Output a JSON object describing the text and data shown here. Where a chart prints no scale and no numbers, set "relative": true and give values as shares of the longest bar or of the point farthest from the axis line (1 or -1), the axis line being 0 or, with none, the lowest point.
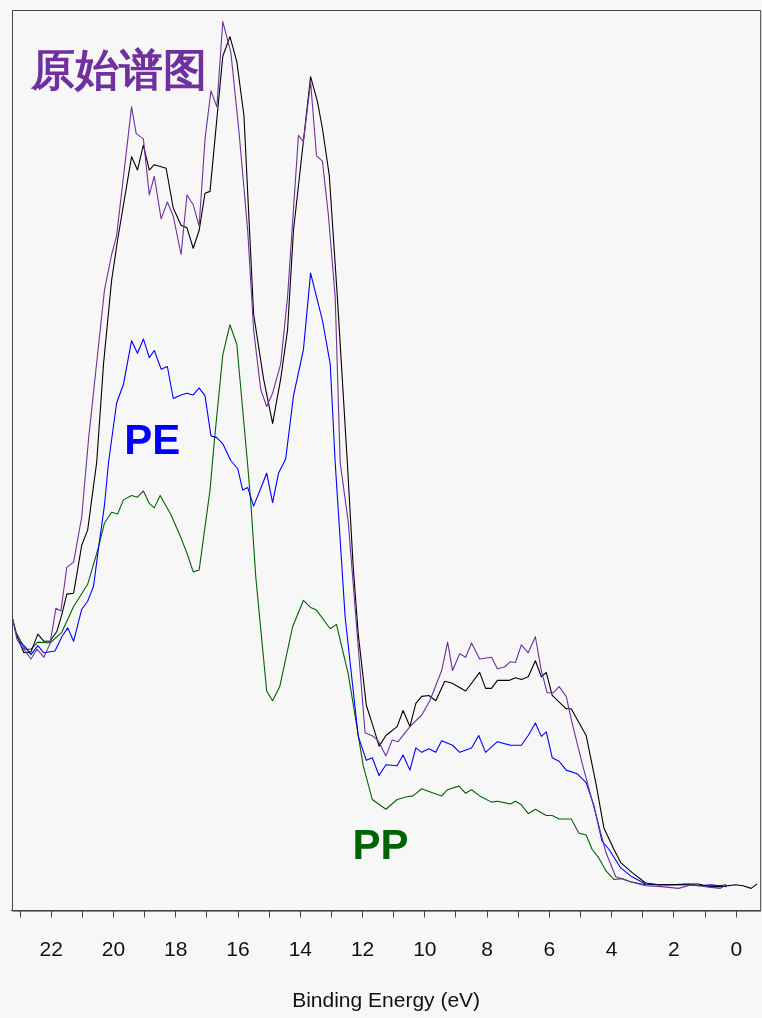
{
  "chart_data": {
    "type": "line",
    "xlabel": "Binding Energy (eV)",
    "relative": true,
    "legend": false,
    "grid": false,
    "marker": "none",
    "line_style": "solid",
    "xlim": [
      23.26,
      -0.77
    ],
    "xticks": [
      {
        "value": 23,
        "label": null
      },
      22,
      {
        "value": 21,
        "label": null
      },
      20,
      {
        "value": 19,
        "label": null
      },
      18,
      {
        "value": 17,
        "label": null
      },
      16,
      {
        "value": 15,
        "label": null
      },
      14,
      {
        "value": 13,
        "label": null
      },
      12,
      {
        "value": 11,
        "label": null
      },
      10,
      {
        "value": 9,
        "label": null
      },
      8,
      {
        "value": 7,
        "label": null
      },
      6,
      {
        "value": 5,
        "label": null
      },
      4,
      {
        "value": 3,
        "label": null
      },
      2,
      {
        "value": 1,
        "label": null
      },
      0
    ],
    "series": [
      {
        "name": "原始谱图",
        "color": "#7030a0",
        "x": [
          23.26,
          23.1,
          22.88,
          22.65,
          22.46,
          22.24,
          22.04,
          21.85,
          21.69,
          21.5,
          21.28,
          21.02,
          20.8,
          20.29,
          20.06,
          19.9,
          19.42,
          19.27,
          19.04,
          18.85,
          18.69,
          18.47,
          18.27,
          18.08,
          17.83,
          17.64,
          17.44,
          17.25,
          17.06,
          16.87,
          16.68,
          16.49,
          16.23,
          15.97,
          15.69,
          15.5,
          15.27,
          15.08,
          14.89,
          14.63,
          14.41,
          14.06,
          13.9,
          13.67,
          13.48,
          13.29,
          13.1,
          12.88,
          12.72,
          12.46,
          11.92,
          11.66,
          11.5,
          11.25,
          11.05,
          10.86,
          10.48,
          10.1,
          9.84,
          9.46,
          9.27,
          9.11,
          8.88,
          8.69,
          8.5,
          8.24,
          7.86,
          7.67,
          7.44,
          7.25,
          7.09,
          6.9,
          6.68,
          6.45,
          6.26,
          6.07,
          5.88,
          5.69,
          5.46,
          5.27,
          4.95,
          4.5,
          4.19,
          3.87,
          3.45,
          2.91,
          2.4,
          1.85,
          1.44,
          0.99,
          0.51,
          0.32
        ],
        "values": [
          0.331,
          0.305,
          0.294,
          0.283,
          0.294,
          0.285,
          0.3,
          0.34,
          0.337,
          0.386,
          0.392,
          0.443,
          0.531,
          0.698,
          0.738,
          0.759,
          0.904,
          0.874,
          0.868,
          0.805,
          0.826,
          0.778,
          0.797,
          0.781,
          0.738,
          0.805,
          0.794,
          0.77,
          0.868,
          0.922,
          0.904,
          1,
          0.965,
          0.876,
          0.765,
          0.653,
          0.586,
          0.567,
          0.582,
          0.615,
          0.69,
          0.872,
          0.865,
          0.932,
          0.849,
          0.843,
          0.783,
          0.69,
          0.504,
          0.437,
          0.2,
          0.196,
          0.191,
          0.174,
          0.192,
          0.19,
          0.207,
          0.22,
          0.236,
          0.27,
          0.302,
          0.27,
          0.289,
          0.285,
          0.301,
          0.283,
          0.285,
          0.272,
          0.274,
          0.28,
          0.279,
          0.299,
          0.29,
          0.308,
          0.27,
          0.245,
          0.245,
          0.252,
          0.241,
          0.211,
          0.166,
          0.107,
          0.066,
          0.038,
          0.033,
          0.028,
          0.027,
          0.025,
          0.029,
          0.027,
          0.025,
          0.029
        ]
      },
      {
        "color": "#000000",
        "x": [
          23.26,
          23.1,
          22.88,
          22.65,
          22.43,
          22.24,
          22.04,
          21.82,
          21.66,
          21.5,
          21.28,
          21.02,
          20.83,
          20.64,
          20.54,
          20.32,
          20.06,
          19.87,
          19.42,
          19.23,
          19.04,
          18.85,
          18.69,
          18.31,
          18.08,
          17.83,
          17.64,
          17.44,
          17.25,
          17.06,
          16.9,
          16.49,
          16.26,
          16.04,
          15.81,
          15.5,
          15.18,
          14.89,
          14.63,
          14.41,
          14.22,
          13.67,
          13.45,
          13.29,
          13.07,
          12.81,
          12.49,
          12.3,
          12.14,
          11.88,
          11.66,
          11.47,
          11.25,
          10.89,
          10.7,
          10.48,
          10.29,
          10.1,
          9.87,
          9.65,
          9.36,
          9.14,
          8.69,
          8.24,
          8.05,
          7.86,
          7.67,
          7.28,
          7.09,
          6.9,
          6.68,
          6.45,
          6.26,
          6.1,
          5.91,
          5.46,
          5.3,
          4.82,
          4.5,
          4.25,
          3.93,
          3.71,
          3.35,
          2.91,
          2.49,
          2.08,
          1.63,
          1.21,
          0.89,
          0.48,
          0.03,
          -0.22,
          -0.48,
          -0.67
        ],
        "values": [
          0.331,
          0.309,
          0.29,
          0.291,
          0.311,
          0.303,
          0.303,
          0.314,
          0.333,
          0.356,
          0.357,
          0.411,
          0.428,
          0.478,
          0.504,
          0.615,
          0.709,
          0.754,
          0.848,
          0.833,
          0.861,
          0.833,
          0.839,
          0.835,
          0.79,
          0.771,
          0.768,
          0.745,
          0.765,
          0.807,
          0.809,
          0.961,
          0.983,
          0.955,
          0.894,
          0.671,
          0.598,
          0.548,
          0.598,
          0.653,
          0.765,
          0.938,
          0.91,
          0.88,
          0.827,
          0.69,
          0.504,
          0.386,
          0.311,
          0.231,
          0.207,
          0.185,
          0.197,
          0.207,
          0.225,
          0.207,
          0.233,
          0.241,
          0.242,
          0.236,
          0.258,
          0.256,
          0.247,
          0.268,
          0.25,
          0.25,
          0.259,
          0.259,
          0.262,
          0.26,
          0.263,
          0.281,
          0.263,
          0.268,
          0.242,
          0.227,
          0.227,
          0.197,
          0.142,
          0.093,
          0.069,
          0.054,
          0.043,
          0.031,
          0.029,
          0.029,
          0.03,
          0.03,
          0.027,
          0.027,
          0.029,
          0.028,
          0.025,
          0.03
        ]
      },
      {
        "name": "PE",
        "color": "#0000ff",
        "x": [
          23.04,
          22.84,
          22.65,
          22.43,
          22.24,
          21.88,
          21.66,
          21.47,
          21.28,
          21.02,
          20.83,
          20.64,
          20.48,
          20.29,
          20.16,
          19.9,
          19.68,
          19.42,
          19.23,
          19.04,
          18.85,
          18.69,
          18.47,
          18.27,
          18.08,
          17.83,
          17.64,
          17.44,
          17.25,
          17.06,
          16.87,
          16.68,
          16.49,
          16.23,
          16.01,
          15.85,
          15.69,
          15.5,
          15.27,
          15.08,
          14.89,
          14.7,
          14.47,
          14.22,
          13.9,
          13.67,
          13.29,
          13.04,
          12.88,
          12.56,
          12.14,
          11.88,
          11.69,
          11.47,
          11.25,
          10.89,
          10.7,
          10.48,
          10.29,
          10.1,
          9.87,
          9.65,
          9.46,
          9.11,
          8.88,
          8.5,
          8.27,
          8.05,
          7.67,
          7.25,
          6.9,
          6.68,
          6.45,
          6.26,
          6.1,
          5.91,
          5.69,
          5.46,
          5.11,
          4.82,
          4.57,
          4.31,
          4.09,
          3.71,
          3.35,
          2.91,
          2.49,
          2.08,
          1.63,
          1.21,
          0.8,
          0.32
        ],
        "values": [
          0.303,
          0.297,
          0.288,
          0.298,
          0.29,
          0.292,
          0.308,
          0.318,
          0.303,
          0.339,
          0.348,
          0.365,
          0.408,
          0.456,
          0.504,
          0.571,
          0.592,
          0.641,
          0.627,
          0.643,
          0.622,
          0.63,
          0.609,
          0.612,
          0.576,
          0.58,
          0.582,
          0.58,
          0.588,
          0.579,
          0.534,
          0.532,
          0.525,
          0.506,
          0.497,
          0.473,
          0.476,
          0.455,
          0.475,
          0.492,
          0.459,
          0.492,
          0.508,
          0.579,
          0.631,
          0.717,
          0.664,
          0.615,
          0.504,
          0.33,
          0.196,
          0.169,
          0.172,
          0.152,
          0.164,
          0.163,
          0.175,
          0.158,
          0.183,
          0.178,
          0.182,
          0.178,
          0.191,
          0.186,
          0.178,
          0.183,
          0.197,
          0.178,
          0.19,
          0.186,
          0.186,
          0.197,
          0.211,
          0.196,
          0.201,
          0.172,
          0.168,
          0.158,
          0.154,
          0.144,
          0.118,
          0.078,
          0.069,
          0.048,
          0.038,
          0.03,
          0.029,
          0.029,
          0.029,
          0.028,
          0.029,
          0.027
        ]
      },
      {
        "name": "PP",
        "color": "#006400",
        "x": [
          23.1,
          22.84,
          22.65,
          22.43,
          22.04,
          21.66,
          21.28,
          20.83,
          20.48,
          20.29,
          20.06,
          19.87,
          19.68,
          19.42,
          19.23,
          19.04,
          18.85,
          18.69,
          18.5,
          18.15,
          17.83,
          17.64,
          17.44,
          17.25,
          16.9,
          16.77,
          16.49,
          16.26,
          16.04,
          15.69,
          15.59,
          15.43,
          15.08,
          14.89,
          14.66,
          14.25,
          13.9,
          13.67,
          13.48,
          13.04,
          12.84,
          12.65,
          12.46,
          12.24,
          11.98,
          11.69,
          11.25,
          10.89,
          10.58,
          10.38,
          10.1,
          9.87,
          9.46,
          9.27,
          8.91,
          8.69,
          8.5,
          8.24,
          7.86,
          7.67,
          7.25,
          7.09,
          6.9,
          6.68,
          6.45,
          6.1,
          5.91,
          5.69,
          5.3,
          5.05,
          4.82,
          4.63,
          4.41,
          4.19,
          3.93,
          3.67,
          3.35,
          2.91,
          2.4,
          1.85,
          1.44,
          0.99,
          0.58,
          0.32
        ],
        "values": [
          0.311,
          0.294,
          0.294,
          0.302,
          0.301,
          0.313,
          0.342,
          0.367,
          0.409,
          0.436,
          0.448,
          0.446,
          0.462,
          0.467,
          0.465,
          0.472,
          0.458,
          0.453,
          0.467,
          0.445,
          0.419,
          0.402,
          0.381,
          0.383,
          0.473,
          0.525,
          0.625,
          0.659,
          0.637,
          0.501,
          0.459,
          0.375,
          0.247,
          0.236,
          0.252,
          0.319,
          0.349,
          0.341,
          0.338,
          0.317,
          0.322,
          0.294,
          0.266,
          0.219,
          0.163,
          0.125,
          0.114,
          0.125,
          0.128,
          0.129,
          0.137,
          0.134,
          0.129,
          0.136,
          0.14,
          0.132,
          0.136,
          0.129,
          0.122,
          0.123,
          0.12,
          0.123,
          0.119,
          0.109,
          0.114,
          0.107,
          0.107,
          0.103,
          0.103,
          0.087,
          0.085,
          0.069,
          0.059,
          0.045,
          0.035,
          0.036,
          0.032,
          0.029,
          0.029,
          0.029,
          0.029,
          0.028,
          0.028,
          0.029
        ]
      }
    ]
  }
}
